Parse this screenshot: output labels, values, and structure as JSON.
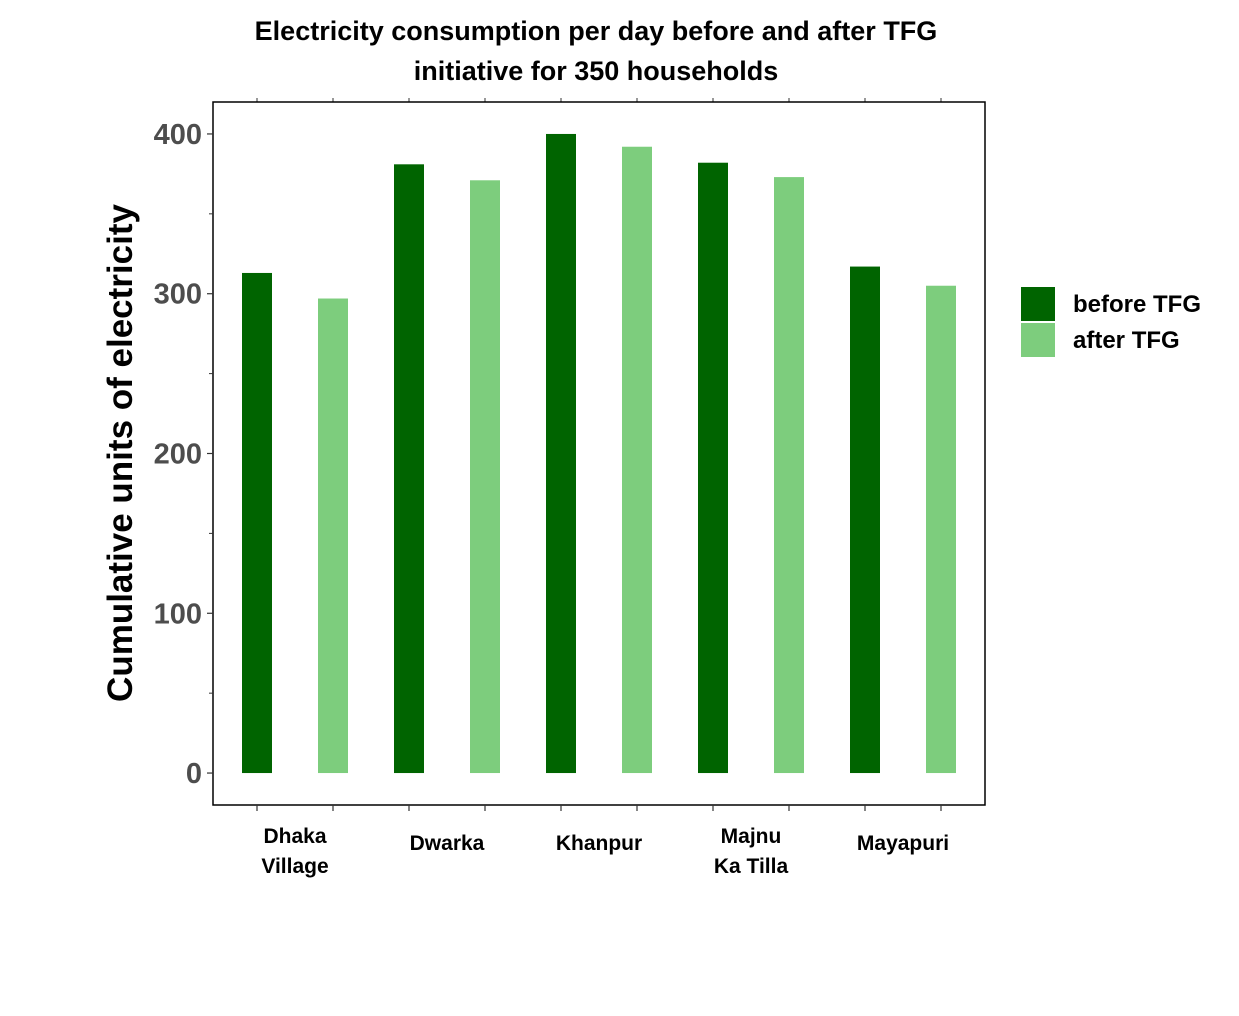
{
  "chart_data": {
    "type": "bar",
    "title_lines": [
      "Electricity consumption per day before and after TFG",
      "initiative for 350 households"
    ],
    "xlabel": "",
    "ylabel": "Cumulative units of electricity",
    "categories": [
      [
        "Dhaka",
        "Village"
      ],
      [
        "Dwarka"
      ],
      [
        "Khanpur"
      ],
      [
        "Majnu",
        "Ka Tilla"
      ],
      [
        "Mayapuri"
      ]
    ],
    "series": [
      {
        "name": "before TFG",
        "color": "#006400",
        "values": [
          313,
          381,
          400,
          382,
          317
        ]
      },
      {
        "name": "after TFG",
        "color": "#7dcd7d",
        "values": [
          297,
          371,
          392,
          373,
          305
        ]
      }
    ],
    "ylim": [
      -20,
      420
    ],
    "yticks": [
      0,
      100,
      200,
      300,
      400
    ],
    "grid": false,
    "legend_position": "right"
  }
}
